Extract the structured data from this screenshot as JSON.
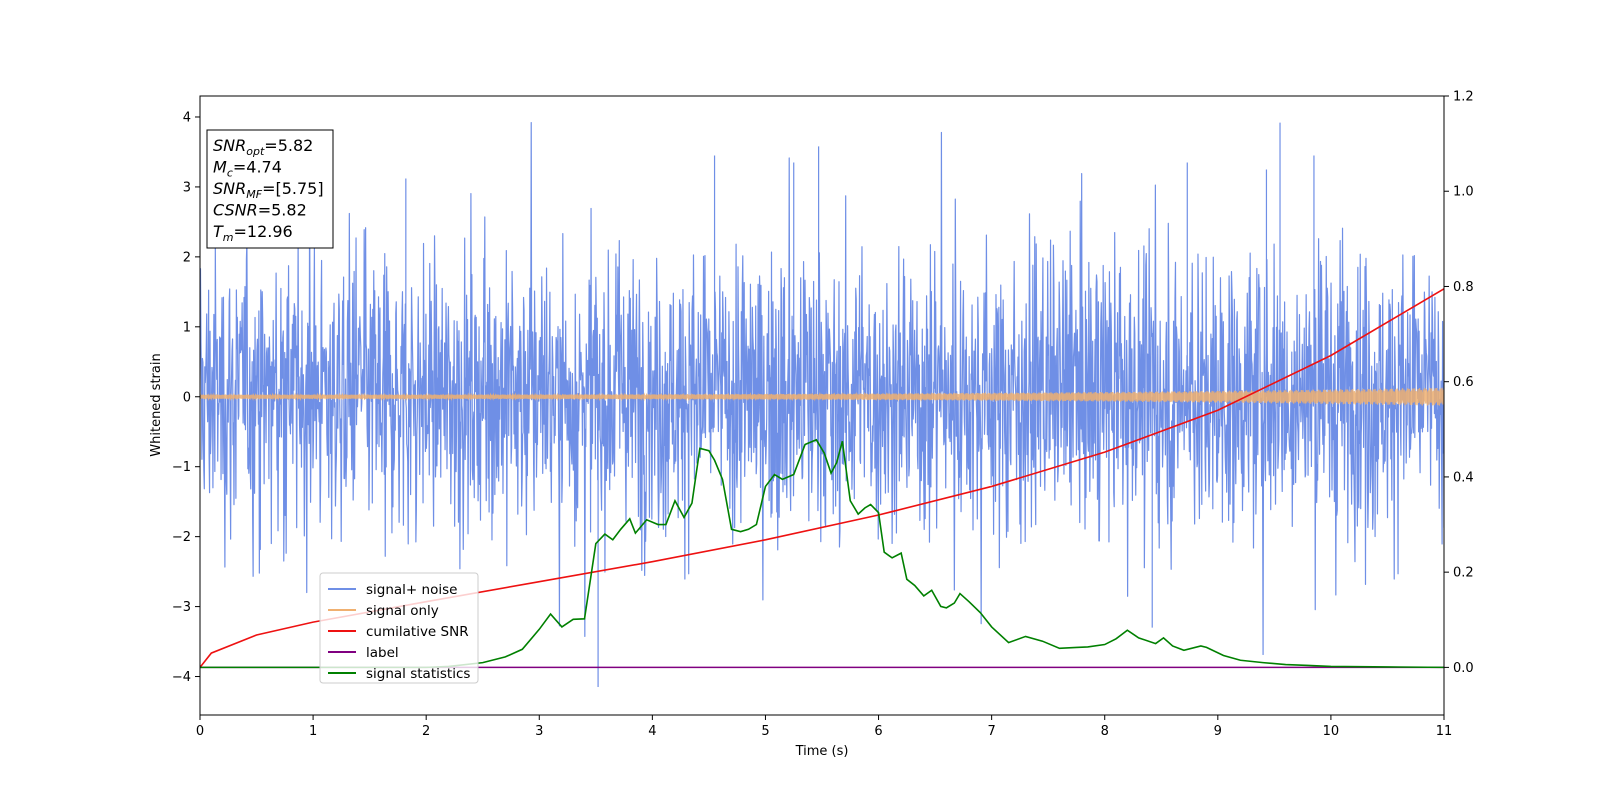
{
  "chart_data": {
    "type": "line",
    "xlabel": "Time (s)",
    "ylabel": "Whitened strain",
    "xlim": [
      0,
      11
    ],
    "ylim": [
      -4.55,
      4.3
    ],
    "y2lim": [
      -0.1,
      1.2
    ],
    "xticks": [
      "0",
      "1",
      "2",
      "3",
      "4",
      "5",
      "6",
      "7",
      "8",
      "9",
      "10",
      "11"
    ],
    "yticks": [
      "−4",
      "−3",
      "−2",
      "−1",
      "0",
      "1",
      "2",
      "3",
      "4"
    ],
    "y2ticks": [
      "0.0",
      "0.2",
      "0.4",
      "0.6",
      "0.8",
      "1.0",
      "1.2"
    ],
    "grid": false,
    "legend_placement": "lower-left",
    "info_box": [
      {
        "main": "SNR",
        "sub": "opt",
        "value": "=5.82"
      },
      {
        "main": "M",
        "sub": "c",
        "value": "=4.74"
      },
      {
        "main": "SNR",
        "sub": "MF",
        "value": "=[5.75]"
      },
      {
        "main": "CSNR",
        "sub": "",
        "value": "=5.82"
      },
      {
        "main": "T",
        "sub": "m",
        "value": "=12.96"
      }
    ],
    "series": [
      {
        "name": "signal+ noise",
        "color": "#6f8fe6",
        "axis": "left",
        "kind": "noise-band",
        "typical_range": [
          -1.8,
          1.9
        ],
        "spike_min": -4.15,
        "spike_max": 3.92,
        "spikes": [
          [
            3.52,
            -4.15
          ],
          [
            9.55,
            3.92
          ],
          [
            5.47,
            3.58
          ],
          [
            4.55,
            3.45
          ],
          [
            9.85,
            3.45
          ],
          [
            5.25,
            3.35
          ],
          [
            1.82,
            3.12
          ],
          [
            8.73,
            3.35
          ],
          [
            8.42,
            -3.3
          ],
          [
            9.43,
            3.25
          ]
        ]
      },
      {
        "name": "signal only",
        "color": "#f0b070",
        "axis": "left",
        "kind": "chirp",
        "amplitude_start": 0.03,
        "amplitude_end": 0.13
      },
      {
        "name": "cumilative SNR",
        "color": "#ee1111",
        "axis": "right",
        "x": [
          0,
          0.1,
          0.5,
          1.0,
          2.0,
          3.0,
          4.0,
          5.0,
          6.0,
          7.0,
          8.0,
          9.0,
          10.0,
          11.0
        ],
        "y": [
          0.0,
          0.03,
          0.068,
          0.095,
          0.138,
          0.18,
          0.222,
          0.268,
          0.32,
          0.38,
          0.452,
          0.54,
          0.655,
          0.795
        ]
      },
      {
        "name": "label",
        "color": "#800080",
        "axis": "right",
        "x": [
          0,
          11
        ],
        "y": [
          0.0,
          0.0
        ]
      },
      {
        "name": "signal statistics",
        "color": "#008000",
        "axis": "right",
        "x": [
          0,
          1,
          2,
          2.2,
          2.5,
          2.7,
          2.85,
          3.0,
          3.1,
          3.2,
          3.3,
          3.4,
          3.5,
          3.58,
          3.65,
          3.72,
          3.8,
          3.85,
          3.95,
          4.05,
          4.12,
          4.2,
          4.28,
          4.35,
          4.42,
          4.5,
          4.55,
          4.62,
          4.7,
          4.78,
          4.85,
          4.92,
          5.0,
          5.08,
          5.15,
          5.25,
          5.35,
          5.45,
          5.52,
          5.58,
          5.63,
          5.68,
          5.75,
          5.82,
          5.88,
          5.93,
          6.0,
          6.05,
          6.12,
          6.2,
          6.25,
          6.32,
          6.4,
          6.47,
          6.55,
          6.6,
          6.67,
          6.72,
          6.8,
          6.9,
          7.0,
          7.15,
          7.3,
          7.45,
          7.6,
          7.75,
          7.85,
          8.0,
          8.1,
          8.2,
          8.3,
          8.45,
          8.52,
          8.6,
          8.7,
          8.85,
          8.9,
          9.05,
          9.2,
          9.4,
          9.6,
          9.8,
          10.0,
          10.5,
          11.0
        ],
        "y": [
          0.0,
          0.0,
          0.0,
          0.002,
          0.01,
          0.022,
          0.038,
          0.08,
          0.112,
          0.085,
          0.101,
          0.102,
          0.26,
          0.28,
          0.268,
          0.29,
          0.312,
          0.282,
          0.31,
          0.3,
          0.3,
          0.35,
          0.315,
          0.345,
          0.46,
          0.455,
          0.435,
          0.395,
          0.29,
          0.285,
          0.29,
          0.3,
          0.38,
          0.405,
          0.395,
          0.405,
          0.468,
          0.478,
          0.45,
          0.408,
          0.43,
          0.475,
          0.35,
          0.322,
          0.335,
          0.342,
          0.325,
          0.242,
          0.23,
          0.24,
          0.185,
          0.172,
          0.15,
          0.162,
          0.128,
          0.125,
          0.135,
          0.155,
          0.138,
          0.115,
          0.085,
          0.052,
          0.065,
          0.055,
          0.04,
          0.042,
          0.043,
          0.048,
          0.06,
          0.078,
          0.062,
          0.05,
          0.062,
          0.045,
          0.036,
          0.045,
          0.042,
          0.025,
          0.015,
          0.01,
          0.006,
          0.004,
          0.002,
          0.001,
          0.0
        ]
      }
    ]
  }
}
